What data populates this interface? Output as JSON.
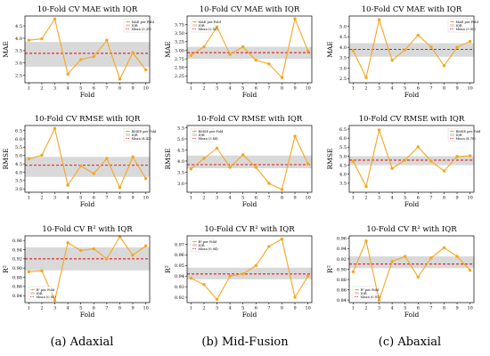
{
  "chart_data": [
    {
      "type": "line",
      "title": "10-Fold CV MAE with IQR",
      "xlabel": "Fold",
      "ylabel": "MAE",
      "x": [
        1,
        2,
        3,
        4,
        5,
        6,
        7,
        8,
        9,
        10
      ],
      "ylim": [
        2.2,
        4.9
      ],
      "yticks": [
        2.5,
        3.0,
        3.5,
        4.0,
        4.5
      ],
      "values": [
        3.92,
        3.98,
        4.78,
        2.55,
        3.14,
        3.26,
        3.92,
        2.35,
        3.42,
        2.72
      ],
      "iqr": [
        2.85,
        3.85
      ],
      "mean": 3.39,
      "legend": [
        "MAE per Fold",
        "IQR",
        "Mean (3.39)"
      ],
      "legend_loc": "upper-right"
    },
    {
      "type": "line",
      "title": "10-Fold CV MAE with IQR",
      "xlabel": "Fold",
      "ylabel": "MAE",
      "x": [
        1,
        2,
        3,
        4,
        5,
        6,
        7,
        8,
        9,
        10
      ],
      "ylim": [
        2.05,
        4.0
      ],
      "yticks": [
        2.25,
        2.5,
        2.75,
        3.0,
        3.25,
        3.5,
        3.75
      ],
      "values": [
        2.85,
        3.1,
        3.68,
        2.88,
        3.1,
        2.71,
        2.6,
        2.2,
        3.92,
        2.98
      ],
      "iqr": [
        2.75,
        3.1
      ],
      "mean": 2.93,
      "legend": [
        "MAE per Fold",
        "IQR",
        "Mean (2.93)"
      ],
      "legend_loc": "upper-left"
    },
    {
      "type": "line",
      "title": "10-Fold CV MAE with IQR",
      "xlabel": "Fold",
      "ylabel": "MAE",
      "x": [
        1,
        2,
        3,
        4,
        5,
        6,
        7,
        8,
        9,
        10
      ],
      "ylim": [
        2.3,
        5.5
      ],
      "yticks": [
        2.5,
        3.0,
        3.5,
        4.0,
        4.5,
        5.0
      ],
      "values": [
        3.85,
        2.55,
        5.32,
        3.38,
        3.88,
        4.58,
        4.02,
        3.12,
        4.0,
        4.28
      ],
      "iqr": [
        3.55,
        4.2
      ],
      "mean": 3.9,
      "legend": [
        "MAE per Fold",
        "IQR",
        "Mean (3.90)"
      ],
      "legend_loc": "upper-right"
    },
    {
      "type": "line",
      "title": "10-Fold CV RMSE with IQR",
      "xlabel": "Fold",
      "ylabel": "RMSE",
      "x": [
        1,
        2,
        3,
        4,
        5,
        6,
        7,
        8,
        9,
        10
      ],
      "ylim": [
        2.8,
        6.8
      ],
      "yticks": [
        3.0,
        3.5,
        4.0,
        4.5,
        5.0,
        5.5,
        6.0,
        6.5
      ],
      "values": [
        4.8,
        5.02,
        6.62,
        3.22,
        4.38,
        3.92,
        4.82,
        3.08,
        4.92,
        3.62
      ],
      "iqr": [
        3.72,
        4.92
      ],
      "mean": 4.42,
      "legend": [
        "RMSE per Fold",
        "IQR",
        "Mean (4.42)"
      ],
      "legend_loc": "upper-right"
    },
    {
      "type": "line",
      "title": "10-Fold CV RMSE with IQR",
      "xlabel": "Fold",
      "ylabel": "RMSE",
      "x": [
        1,
        2,
        3,
        4,
        5,
        6,
        7,
        8,
        9,
        10
      ],
      "ylim": [
        2.6,
        5.6
      ],
      "yticks": [
        3.0,
        3.5,
        4.0,
        4.5,
        5.0,
        5.5
      ],
      "values": [
        3.65,
        4.12,
        4.58,
        3.72,
        4.28,
        3.72,
        3.0,
        2.72,
        5.12,
        3.88
      ],
      "iqr": [
        3.68,
        4.25
      ],
      "mean": 3.84,
      "legend": [
        "RMSE per Fold",
        "IQR",
        "Mean (3.84)"
      ],
      "legend_loc": "upper-left"
    },
    {
      "type": "line",
      "title": "10-Fold CV RMSE with IQR",
      "xlabel": "Fold",
      "ylabel": "RMSE",
      "x": [
        1,
        2,
        3,
        4,
        5,
        6,
        7,
        8,
        9,
        10
      ],
      "ylim": [
        3.0,
        6.7
      ],
      "yticks": [
        3.5,
        4.0,
        4.5,
        5.0,
        5.5,
        6.0,
        6.5
      ],
      "values": [
        4.72,
        3.32,
        6.45,
        4.32,
        4.78,
        5.52,
        4.72,
        4.18,
        4.98,
        5.02
      ],
      "iqr": [
        4.5,
        5.0
      ],
      "mean": 4.78,
      "legend": [
        "RMSE per Fold",
        "IQR",
        "Mean (4.78)"
      ],
      "legend_loc": "upper-right"
    },
    {
      "type": "line",
      "title": "10-Fold CV R² with IQR",
      "xlabel": "Fold",
      "ylabel": "R²",
      "x": [
        1,
        2,
        3,
        4,
        5,
        6,
        7,
        8,
        9,
        10
      ],
      "ylim": [
        0.825,
        0.97
      ],
      "yticks": [
        0.84,
        0.86,
        0.88,
        0.9,
        0.92,
        0.94,
        0.96
      ],
      "values": [
        0.892,
        0.894,
        0.83,
        0.955,
        0.938,
        0.942,
        0.92,
        0.968,
        0.928,
        0.948
      ],
      "iqr": [
        0.895,
        0.945
      ],
      "mean": 0.92,
      "legend": [
        "R² per Fold",
        "IQR",
        "Mean (0.92)"
      ],
      "legend_loc": "lower-left"
    },
    {
      "type": "line",
      "title": "10-Fold CV R² with IQR",
      "xlabel": "Fold",
      "ylabel": "R²",
      "x": [
        1,
        2,
        3,
        4,
        5,
        6,
        7,
        8,
        9,
        10
      ],
      "ylim": [
        0.915,
        0.978
      ],
      "yticks": [
        0.92,
        0.93,
        0.94,
        0.95,
        0.96,
        0.97
      ],
      "values": [
        0.938,
        0.932,
        0.918,
        0.94,
        0.942,
        0.95,
        0.968,
        0.975,
        0.92,
        0.94
      ],
      "iqr": [
        0.937,
        0.948
      ],
      "mean": 0.942,
      "legend": [
        "R² per Fold",
        "IQR",
        "Mean (0.94)"
      ],
      "legend_loc": "upper-left"
    },
    {
      "type": "line",
      "title": "10-Fold CV R² with IQR",
      "xlabel": "Fold",
      "ylabel": "R²",
      "x": [
        1,
        2,
        3,
        4,
        5,
        6,
        7,
        8,
        9,
        10
      ],
      "ylim": [
        0.835,
        0.965
      ],
      "yticks": [
        0.84,
        0.86,
        0.88,
        0.9,
        0.92,
        0.94,
        0.96
      ],
      "values": [
        0.895,
        0.955,
        0.84,
        0.915,
        0.925,
        0.885,
        0.922,
        0.942,
        0.925,
        0.898
      ],
      "iqr": [
        0.902,
        0.925
      ],
      "mean": 0.91,
      "legend": [
        "R² per Fold",
        "IQR",
        "Mean (0.91)"
      ],
      "legend_loc": "lower-left"
    }
  ],
  "captions": [
    "(a) Adaxial",
    "(b) Mid-Fusion",
    "(c) Abaxial"
  ],
  "colors": {
    "series": "#f5a623",
    "iqr": "#d9d9d9",
    "mean": "#e31a1c",
    "axis": "#000000"
  }
}
